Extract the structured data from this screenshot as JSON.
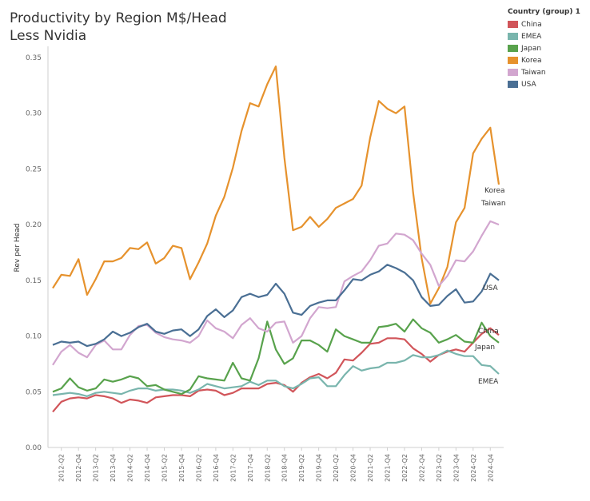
{
  "chart_data": {
    "type": "line",
    "title_lines": [
      "Productivity by Region M$/Head",
      "Less Nvidia"
    ],
    "ylabel": "Rev per Head",
    "xlabel": "",
    "ylim": [
      0,
      0.36
    ],
    "yticks": [
      "0.00",
      "0.05",
      "0.10",
      "0.15",
      "0.20",
      "0.25",
      "0.30",
      "0.35"
    ],
    "grid": false,
    "legend": {
      "title": "Country (group) 1",
      "placement": "top-right",
      "entries": [
        "China",
        "EMEA",
        "Japan",
        "Korea",
        "Taiwan",
        "USA"
      ]
    },
    "x_start_quarter": "2012-Q1",
    "x_labels": [
      "2012-Q2",
      "2012-Q4",
      "2013-Q2",
      "2013-Q4",
      "2014-Q2",
      "2014-Q4",
      "2015-Q2",
      "2015-Q4",
      "2016-Q2",
      "2016-Q4",
      "2017-Q2",
      "2017-Q4",
      "2018-Q2",
      "2018-Q4",
      "2019-Q2",
      "2019-Q4",
      "2020-Q2",
      "2020-Q4",
      "2021-Q2",
      "2021-Q4",
      "2022-Q2",
      "2022-Q4",
      "2023-Q2",
      "2023-Q4",
      "2024-Q2",
      "2024-Q4"
    ],
    "series": [
      {
        "name": "China",
        "color": "#d1555a",
        "end_label": "China",
        "values": [
          0.032,
          0.041,
          0.044,
          0.045,
          0.044,
          0.047,
          0.046,
          0.044,
          0.04,
          0.043,
          0.042,
          0.04,
          0.045,
          0.046,
          0.047,
          0.047,
          0.046,
          0.051,
          0.052,
          0.051,
          0.047,
          0.049,
          0.053,
          0.053,
          0.053,
          0.057,
          0.058,
          0.056,
          0.05,
          0.058,
          0.063,
          0.066,
          0.062,
          0.067,
          0.079,
          0.078,
          0.085,
          0.093,
          0.094,
          0.098,
          0.098,
          0.097,
          0.089,
          0.084,
          0.077,
          0.083,
          0.086,
          0.088,
          0.086,
          0.094,
          0.102,
          0.107,
          0.101
        ]
      },
      {
        "name": "EMEA",
        "color": "#79b5ad",
        "end_label": "EMEA",
        "values": [
          0.047,
          0.048,
          0.049,
          0.048,
          0.046,
          0.049,
          0.05,
          0.049,
          0.048,
          0.051,
          0.053,
          0.053,
          0.051,
          0.052,
          0.052,
          0.051,
          0.049,
          0.052,
          0.057,
          0.055,
          0.053,
          0.054,
          0.055,
          0.059,
          0.056,
          0.06,
          0.06,
          0.055,
          0.053,
          0.057,
          0.062,
          0.063,
          0.055,
          0.055,
          0.065,
          0.073,
          0.069,
          0.071,
          0.072,
          0.076,
          0.076,
          0.078,
          0.083,
          0.081,
          0.081,
          0.083,
          0.087,
          0.084,
          0.082,
          0.082,
          0.074,
          0.073,
          0.066
        ]
      },
      {
        "name": "Japan",
        "color": "#58a24c",
        "end_label": "Japan",
        "values": [
          0.05,
          0.053,
          0.062,
          0.054,
          0.051,
          0.053,
          0.061,
          0.059,
          0.061,
          0.064,
          0.062,
          0.055,
          0.056,
          0.052,
          0.05,
          0.048,
          0.052,
          0.064,
          0.062,
          0.061,
          0.06,
          0.076,
          0.062,
          0.06,
          0.08,
          0.113,
          0.088,
          0.075,
          0.08,
          0.096,
          0.096,
          0.092,
          0.086,
          0.106,
          0.1,
          0.097,
          0.094,
          0.094,
          0.108,
          0.109,
          0.111,
          0.104,
          0.115,
          0.107,
          0.103,
          0.094,
          0.097,
          0.101,
          0.095,
          0.094,
          0.112,
          0.1,
          0.094
        ]
      },
      {
        "name": "Korea",
        "color": "#e6922d",
        "end_label": "Korea",
        "values": [
          0.143,
          0.155,
          0.154,
          0.169,
          0.137,
          0.151,
          0.167,
          0.167,
          0.17,
          0.179,
          0.178,
          0.184,
          0.165,
          0.17,
          0.181,
          0.179,
          0.151,
          0.166,
          0.183,
          0.208,
          0.225,
          0.251,
          0.284,
          0.309,
          0.306,
          0.326,
          0.342,
          0.26,
          0.195,
          0.198,
          0.207,
          0.198,
          0.205,
          0.215,
          0.219,
          0.223,
          0.235,
          0.278,
          0.311,
          0.304,
          0.3,
          0.306,
          0.229,
          0.17,
          0.129,
          0.143,
          0.162,
          0.202,
          0.215,
          0.264,
          0.277,
          0.287,
          0.236
        ]
      },
      {
        "name": "Taiwan",
        "color": "#d2a6cf",
        "end_label": "Taiwan",
        "values": [
          0.074,
          0.086,
          0.092,
          0.085,
          0.081,
          0.092,
          0.096,
          0.088,
          0.088,
          0.101,
          0.109,
          0.11,
          0.103,
          0.099,
          0.097,
          0.096,
          0.094,
          0.1,
          0.114,
          0.107,
          0.104,
          0.098,
          0.11,
          0.116,
          0.107,
          0.104,
          0.112,
          0.113,
          0.094,
          0.1,
          0.116,
          0.126,
          0.125,
          0.126,
          0.149,
          0.154,
          0.158,
          0.168,
          0.181,
          0.183,
          0.192,
          0.191,
          0.186,
          0.174,
          0.164,
          0.145,
          0.154,
          0.168,
          0.167,
          0.176,
          0.19,
          0.203,
          0.2
        ]
      },
      {
        "name": "USA",
        "color": "#4a6f94",
        "end_label": "USA",
        "values": [
          0.092,
          0.095,
          0.094,
          0.095,
          0.091,
          0.093,
          0.097,
          0.104,
          0.1,
          0.103,
          0.108,
          0.111,
          0.104,
          0.102,
          0.105,
          0.106,
          0.1,
          0.106,
          0.118,
          0.124,
          0.117,
          0.123,
          0.135,
          0.138,
          0.135,
          0.137,
          0.147,
          0.138,
          0.121,
          0.119,
          0.127,
          0.13,
          0.132,
          0.132,
          0.141,
          0.151,
          0.15,
          0.155,
          0.158,
          0.164,
          0.161,
          0.157,
          0.15,
          0.135,
          0.127,
          0.128,
          0.136,
          0.142,
          0.13,
          0.131,
          0.14,
          0.156,
          0.15
        ]
      }
    ]
  }
}
